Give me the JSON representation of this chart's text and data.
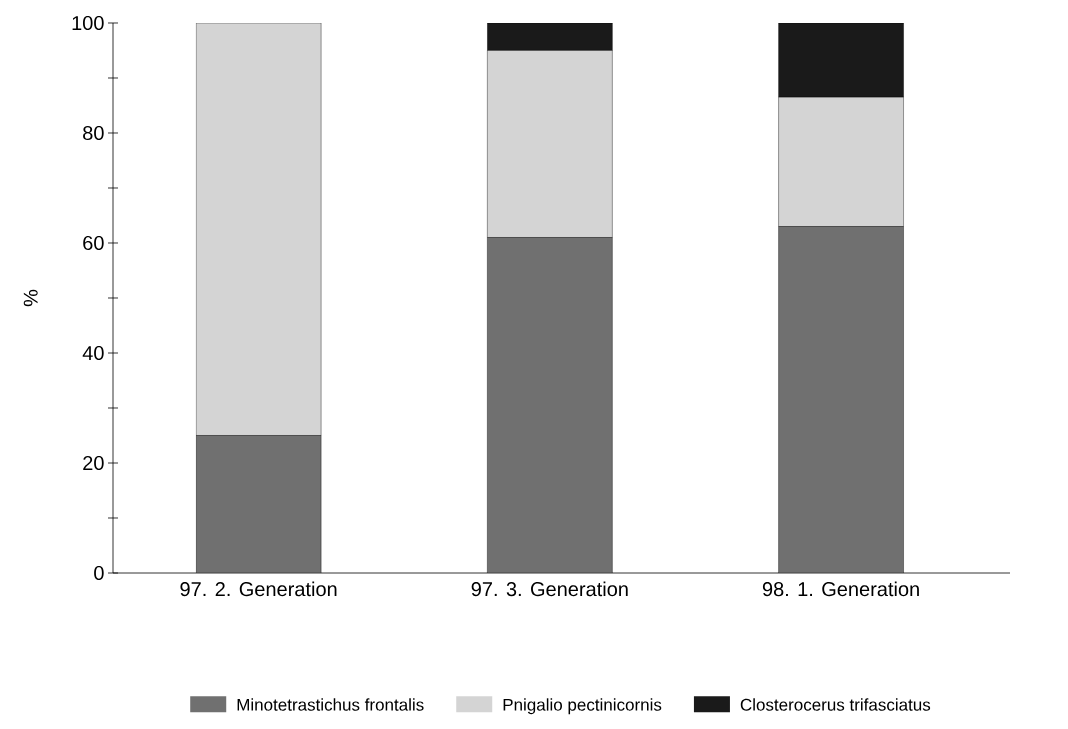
{
  "chart_data": {
    "type": "bar",
    "stacked": true,
    "ylabel": "%",
    "categories": [
      "97. 2. Generation",
      "97. 3. Generation",
      "98. 1. Generation"
    ],
    "series": [
      {
        "name": "Minotetrastichus frontalis",
        "color": "#707070",
        "values": [
          25,
          61,
          63
        ]
      },
      {
        "name": "Pnigalio pectinicornis",
        "color": "#d4d4d4",
        "values": [
          75,
          34,
          23.5
        ]
      },
      {
        "name": "Closterocerus trifasciatus",
        "color": "#1a1a1a",
        "values": [
          0,
          5,
          13.5
        ]
      }
    ],
    "ylim": [
      0,
      100
    ],
    "yticks": [
      0,
      {
        "value": 10,
        "label": null
      },
      20,
      {
        "value": 30,
        "label": null
      },
      40,
      {
        "value": 50,
        "label": null
      },
      60,
      {
        "value": 70,
        "label": null
      },
      80,
      {
        "value": 90,
        "label": null
      },
      100
    ],
    "grid": false,
    "legend": "bottom"
  }
}
